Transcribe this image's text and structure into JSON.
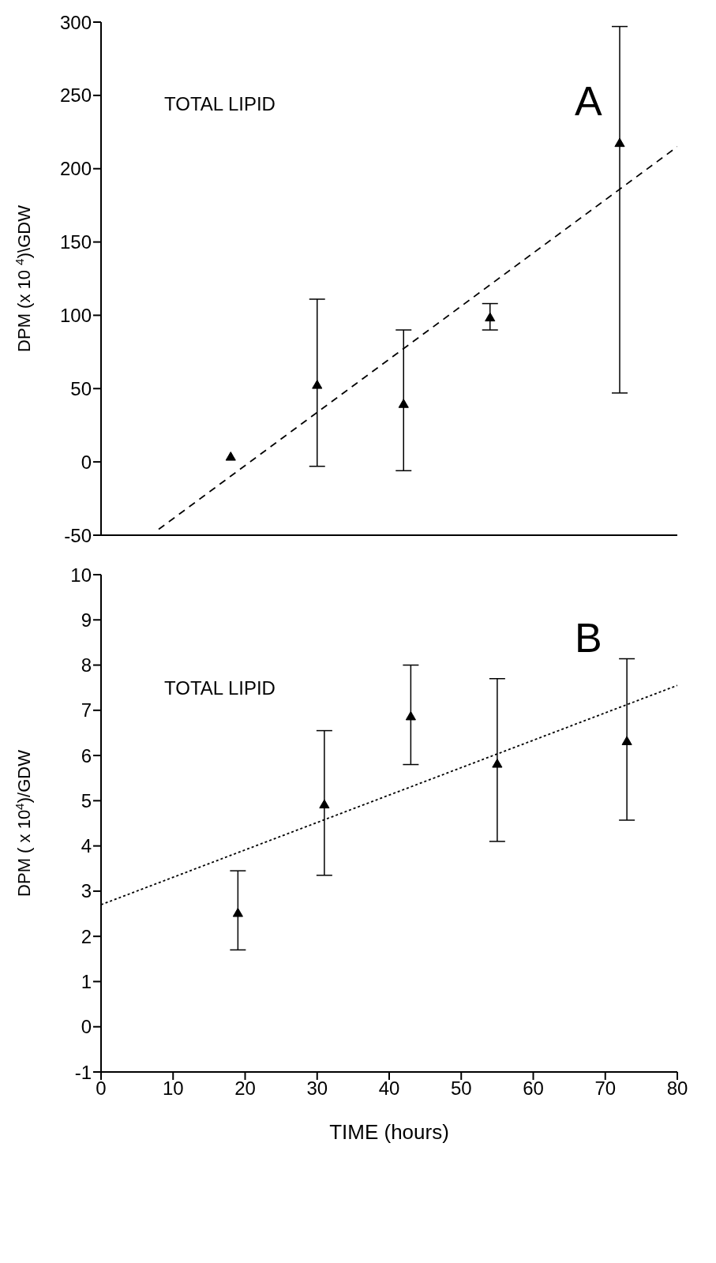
{
  "chart_data": [
    {
      "type": "scatter",
      "xlim": [
        0,
        80
      ],
      "xticks": [
        0,
        10,
        20,
        30,
        40,
        50,
        60,
        70,
        80
      ],
      "ylim": [
        -50,
        300
      ],
      "yticks": [
        -50,
        0,
        50,
        100,
        150,
        200,
        250,
        300
      ],
      "ylabel": "DPM (x 10 $^{4}$)\\GDW",
      "tick_labels": "y",
      "annotations": [
        "TOTAL LIPID",
        "A"
      ],
      "series": [
        {
          "marker": "triangle",
          "color": "#000000",
          "x": [
            18,
            30,
            42,
            54,
            72
          ],
          "values": [
            3,
            52,
            39,
            98,
            217
          ],
          "errors": [
            null,
            [
              -3,
              111
            ],
            [
              -6,
              90
            ],
            [
              90,
              108
            ],
            [
              47,
              297
            ]
          ]
        },
        {
          "type": "line",
          "color": "#000000",
          "x": [
            8,
            80
          ],
          "values": [
            -46,
            215
          ],
          "line_style": "dashed",
          "marker": "none"
        }
      ]
    },
    {
      "type": "scatter",
      "xlim": [
        0,
        80
      ],
      "xticks": [
        0,
        10,
        20,
        30,
        40,
        50,
        60,
        70,
        80
      ],
      "ylim": [
        -1,
        10
      ],
      "yticks": [
        -1,
        0,
        1,
        2,
        3,
        4,
        5,
        6,
        7,
        8,
        9,
        10
      ],
      "xlabel": "TIME (hours)",
      "ylabel": "DPM ( x 10$^{4}$)/GDW",
      "annotations": [
        "TOTAL LIPID",
        "B"
      ],
      "series": [
        {
          "marker": "triangle",
          "color": "#000000",
          "x": [
            19,
            31,
            43,
            55,
            73
          ],
          "values": [
            2.5,
            4.9,
            6.85,
            5.8,
            6.3
          ],
          "errors": [
            [
              1.7,
              3.45
            ],
            [
              3.35,
              6.55
            ],
            [
              5.8,
              8.0
            ],
            [
              4.1,
              7.7
            ],
            [
              4.57,
              8.14
            ]
          ]
        },
        {
          "type": "line",
          "color": "#000000",
          "x": [
            0,
            80
          ],
          "values": [
            2.7,
            7.55
          ],
          "line_style": "dotted",
          "marker": "none"
        }
      ]
    }
  ]
}
